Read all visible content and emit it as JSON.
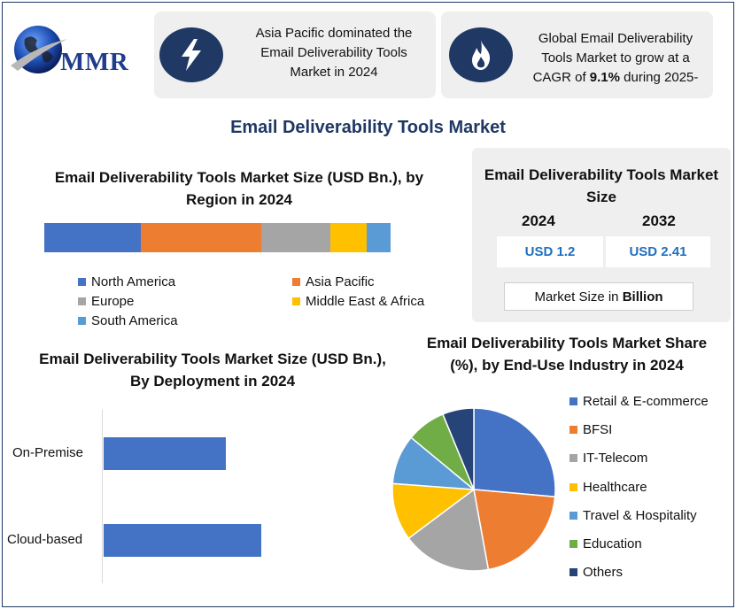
{
  "header": {
    "logo_text": "MMR",
    "box1_text": "Asia Pacific dominated the Email Deliverability Tools Market in 2024",
    "box1_icon": "lightning-bolt-icon",
    "box2_text_before": "Global Email Deliverability Tools Market to grow at a CAGR of ",
    "box2_text_bold": "9.1%",
    "box2_text_after": " during 2025-",
    "box2_icon": "flame-icon"
  },
  "main_title": "Email Deliverability Tools Market",
  "market_size": {
    "title": "Email Deliverability Tools Market Size",
    "year1": "2024",
    "year2": "2032",
    "value1": "USD 1.2",
    "value2": "USD 2.41",
    "unit_prefix": "Market Size in ",
    "unit_bold": "Billion"
  },
  "colors": {
    "navy": "#1f3864",
    "blue": "#4472c4",
    "orange": "#ed7d31",
    "gray": "#a5a5a5",
    "gold": "#ffc000",
    "light_blue": "#5b9bd5",
    "green": "#70ad47",
    "dark_navy": "#264478"
  },
  "chart_data": [
    {
      "type": "bar",
      "orientation": "stacked-horizontal",
      "title": "Email Deliverability Tools Market Size (USD Bn.), by Region in 2024",
      "series": [
        {
          "name": "North America",
          "value": 0.32,
          "color": "#4472c4"
        },
        {
          "name": "Asia Pacific",
          "value": 0.4,
          "color": "#ed7d31"
        },
        {
          "name": "Europe",
          "value": 0.23,
          "color": "#a5a5a5"
        },
        {
          "name": "Middle East & Africa",
          "value": 0.12,
          "color": "#ffc000"
        },
        {
          "name": "South America",
          "value": 0.08,
          "color": "#5b9bd5"
        }
      ],
      "legend_position": "bottom",
      "axes_visible": false
    },
    {
      "type": "bar",
      "orientation": "horizontal",
      "title": "Email Deliverability Tools Market Size (USD Bn.), By Deployment in 2024",
      "categories": [
        "On-Premise",
        "Cloud-based"
      ],
      "values": [
        0.55,
        0.71
      ],
      "xlim": [
        0,
        1.2
      ],
      "color": "#4472c4",
      "axes_visible": false
    },
    {
      "type": "pie",
      "title": "Email Deliverability Tools Market Share (%), by End-Use Industry in 2024",
      "slices": [
        {
          "name": "Retail & E-commerce",
          "value": 25.5,
          "color": "#4472c4"
        },
        {
          "name": "BFSI",
          "value": 20,
          "color": "#ed7d31"
        },
        {
          "name": "IT-Telecom",
          "value": 17,
          "color": "#a5a5a5"
        },
        {
          "name": "Healthcare",
          "value": 11,
          "color": "#ffc000"
        },
        {
          "name": "Travel & Hospitality",
          "value": 9.5,
          "color": "#5b9bd5"
        },
        {
          "name": "Education",
          "value": 7.5,
          "color": "#70ad47"
        },
        {
          "name": "Others",
          "value": 6,
          "color": "#264478"
        }
      ],
      "legend_position": "right"
    }
  ]
}
